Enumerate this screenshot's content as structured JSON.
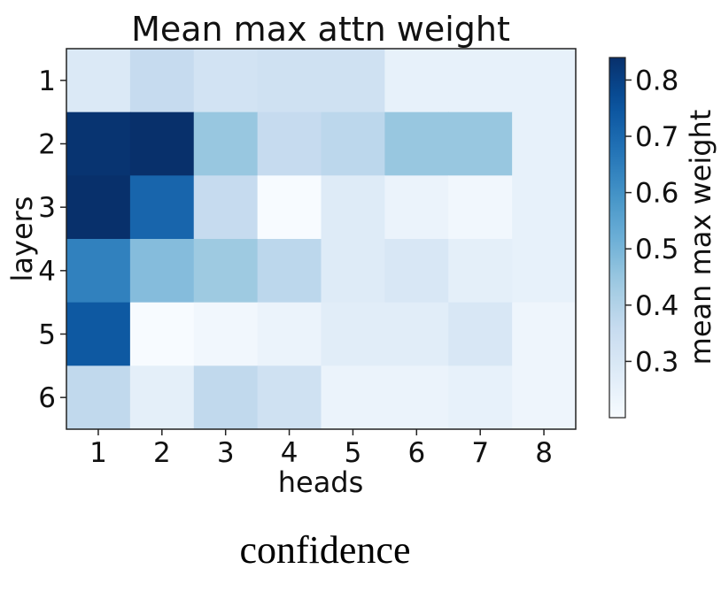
{
  "chart_data": {
    "type": "heatmap",
    "title": "Mean max attn weight",
    "xlabel": "heads",
    "ylabel": "layers",
    "x": [
      "1",
      "2",
      "3",
      "4",
      "5",
      "6",
      "7",
      "8"
    ],
    "y": [
      "1",
      "2",
      "3",
      "4",
      "5",
      "6"
    ],
    "values": [
      [
        0.29,
        0.36,
        0.32,
        0.33,
        0.33,
        0.25,
        0.25,
        0.25
      ],
      [
        0.83,
        0.84,
        0.45,
        0.36,
        0.38,
        0.45,
        0.45,
        0.25
      ],
      [
        0.84,
        0.71,
        0.36,
        0.2,
        0.28,
        0.24,
        0.22,
        0.25
      ],
      [
        0.64,
        0.48,
        0.44,
        0.38,
        0.28,
        0.3,
        0.26,
        0.25
      ],
      [
        0.74,
        0.2,
        0.22,
        0.24,
        0.27,
        0.27,
        0.3,
        0.23
      ],
      [
        0.37,
        0.26,
        0.37,
        0.33,
        0.24,
        0.24,
        0.25,
        0.23
      ]
    ],
    "colormap": "Blues",
    "vmin": 0.2,
    "vmax": 0.84,
    "colorbar": {
      "label": "mean max weight",
      "ticks": [
        "0.3",
        "0.4",
        "0.5",
        "0.6",
        "0.7",
        "0.8"
      ],
      "tick_values": [
        0.3,
        0.4,
        0.5,
        0.6,
        0.7,
        0.8
      ]
    },
    "grid": false
  },
  "caption": "confidence"
}
